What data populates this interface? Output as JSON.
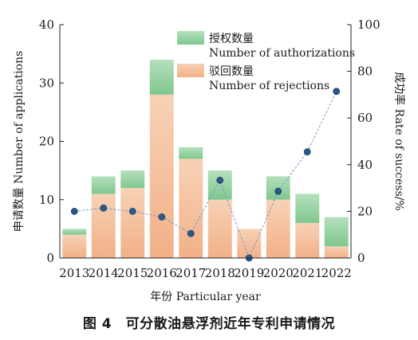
{
  "caption": "图 4　可分散油悬浮剂近年专利申请情况",
  "chart_data": {
    "type": "bar",
    "categories": [
      "2013",
      "2014",
      "2015",
      "2016",
      "2017",
      "2018",
      "2019",
      "2020",
      "2021",
      "2022"
    ],
    "series": [
      {
        "name": "驳回数量 Number of rejections",
        "type": "bar",
        "axis": "left",
        "color": "#f5bf9c",
        "values": [
          4,
          11,
          12,
          28,
          17,
          10,
          5,
          10,
          6,
          2
        ]
      },
      {
        "name": "授权数量 Number of authorizations",
        "type": "bar",
        "axis": "left",
        "color": "#8fcf9c",
        "values": [
          1,
          3,
          3,
          6,
          2,
          5,
          0,
          4,
          5,
          5
        ]
      },
      {
        "name": "成功率 Rate of success/%",
        "type": "line",
        "axis": "right",
        "color": "#2a5a8a",
        "values": [
          20,
          21.4,
          20,
          17.6,
          10.5,
          33.3,
          0,
          28.6,
          45.5,
          71.4
        ]
      }
    ],
    "stacked": true,
    "xlabel": "年份 Particular year",
    "ylabel": "申请数量 Number of applications",
    "y2label": "成功率 Rate of success/%",
    "ylim": [
      0,
      40
    ],
    "y2lim": [
      0,
      100
    ],
    "yticks": [
      0,
      10,
      20,
      30,
      40
    ],
    "y2ticks": [
      0,
      20,
      40,
      60,
      80,
      100
    ],
    "legend": {
      "position": "top-center",
      "items": [
        {
          "zh": "授权数量",
          "en": "Number of authorizations",
          "color": "#8fcf9c"
        },
        {
          "zh": "驳回数量",
          "en": "Number of rejections",
          "color": "#f5bf9c"
        }
      ]
    },
    "grid": false
  }
}
